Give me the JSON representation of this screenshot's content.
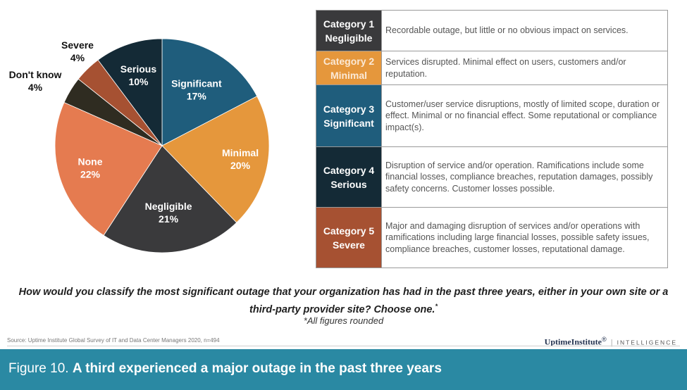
{
  "chart_data": {
    "type": "pie",
    "slices": [
      {
        "label": "Significant",
        "value": 17,
        "value_label": "17%",
        "color": "#1f5d7c"
      },
      {
        "label": "Minimal",
        "value": 20,
        "value_label": "20%",
        "color": "#e5973c"
      },
      {
        "label": "Negligible",
        "value": 21,
        "value_label": "21%",
        "color": "#3a3a3c"
      },
      {
        "label": "None",
        "value": 22,
        "value_label": "22%",
        "color": "#e57b50"
      },
      {
        "label": "Don't know",
        "value": 4,
        "value_label": "4%",
        "color": "#2f2c21"
      },
      {
        "label": "Severe",
        "value": 4,
        "value_label": "4%",
        "color": "#a65132"
      },
      {
        "label": "Serious",
        "value": 10,
        "value_label": "10%",
        "color": "#142a36"
      }
    ]
  },
  "categories": [
    {
      "name": "Category 1",
      "level": "Negligible",
      "color": "#3a3a3c",
      "label_color": "#ffffff",
      "description": "Recordable outage, but little or no obvious impact on services."
    },
    {
      "name": "Category 2",
      "level": "Minimal",
      "color": "#e5973c",
      "label_color": "#fbe9d6",
      "description": "Services disrupted. Minimal effect on users, customers and/or reputation."
    },
    {
      "name": "Category 3",
      "level": "Significant",
      "color": "#1f5d7c",
      "label_color": "#ffffff",
      "description": "Customer/user service disruptions, mostly of limited scope, duration or effect. Minimal or no financial effect. Some reputational or compliance impact(s)."
    },
    {
      "name": "Category 4",
      "level": "Serious",
      "color": "#142a36",
      "label_color": "#ffffff",
      "description": "Disruption of service and/or operation. Ramifications include some financial losses, compliance breaches, reputation damages, possibly safety concerns. Customer losses possible."
    },
    {
      "name": "Category 5",
      "level": "Severe",
      "color": "#a65132",
      "label_color": "#ffffff",
      "description": "Major and damaging disruption of services and/or operations with ramifications including large financial losses, possible safety issues, compliance breaches, customer losses, reputational damage."
    }
  ],
  "question": "How would you classify the most significant outage that your organization has had in the past three years, either in your own site or a third-party provider site? Choose one.",
  "question_mark": "*",
  "footnote": "*All figures rounded",
  "source": "Source: Uptime Institute Global Survey of IT and Data Center Managers 2020, n=494",
  "brand": {
    "name": "UptimeInstitute",
    "reg": "®",
    "divider": "|",
    "suffix": "INTELLIGENCE"
  },
  "banner": {
    "prefix": "Figure 10.",
    "title": "A third experienced a major outage in the past three years"
  }
}
